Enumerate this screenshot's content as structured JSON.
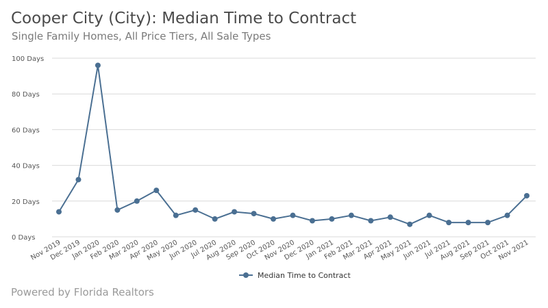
{
  "header": {
    "title": "Cooper City (City): Median Time to Contract",
    "subtitle": "Single Family Homes, All Price Tiers, All Sale Types"
  },
  "footer": {
    "text": "Powered by Florida Realtors"
  },
  "colors": {
    "series": "#4a6f92",
    "grid": "#d9d9d9",
    "axis": "#555555"
  },
  "chart_data": {
    "type": "line",
    "title": "Cooper City (City): Median Time to Contract",
    "subtitle": "Single Family Homes, All Price Tiers, All Sale Types",
    "categories": [
      "Nov 2019",
      "Dec 2019",
      "Jan 2020",
      "Feb 2020",
      "Mar 2020",
      "Apr 2020",
      "May 2020",
      "Jun 2020",
      "Jul 2020",
      "Aug 2020",
      "Sep 2020",
      "Oct 2020",
      "Nov 2020",
      "Dec 2020",
      "Jan 2021",
      "Feb 2021",
      "Mar 2021",
      "Apr 2021",
      "May 2021",
      "Jun 2021",
      "Jul 2021",
      "Aug 2021",
      "Sep 2021",
      "Oct 2021",
      "Nov 2021"
    ],
    "series": [
      {
        "name": "Median Time to Contract",
        "values": [
          14,
          32,
          96,
          15,
          20,
          26,
          12,
          15,
          10,
          14,
          13,
          10,
          12,
          9,
          10,
          12,
          9,
          11,
          7,
          12,
          8,
          8,
          8,
          12,
          23
        ]
      }
    ],
    "ylim": [
      0,
      100
    ],
    "yticks": [
      0,
      20,
      40,
      60,
      80,
      100
    ],
    "ytick_labels": [
      "0 Days",
      "20 Days",
      "40 Days",
      "60 Days",
      "80 Days",
      "100 Days"
    ],
    "xlabel": "",
    "ylabel": "",
    "grid": true,
    "legend_position": "bottom-center"
  }
}
